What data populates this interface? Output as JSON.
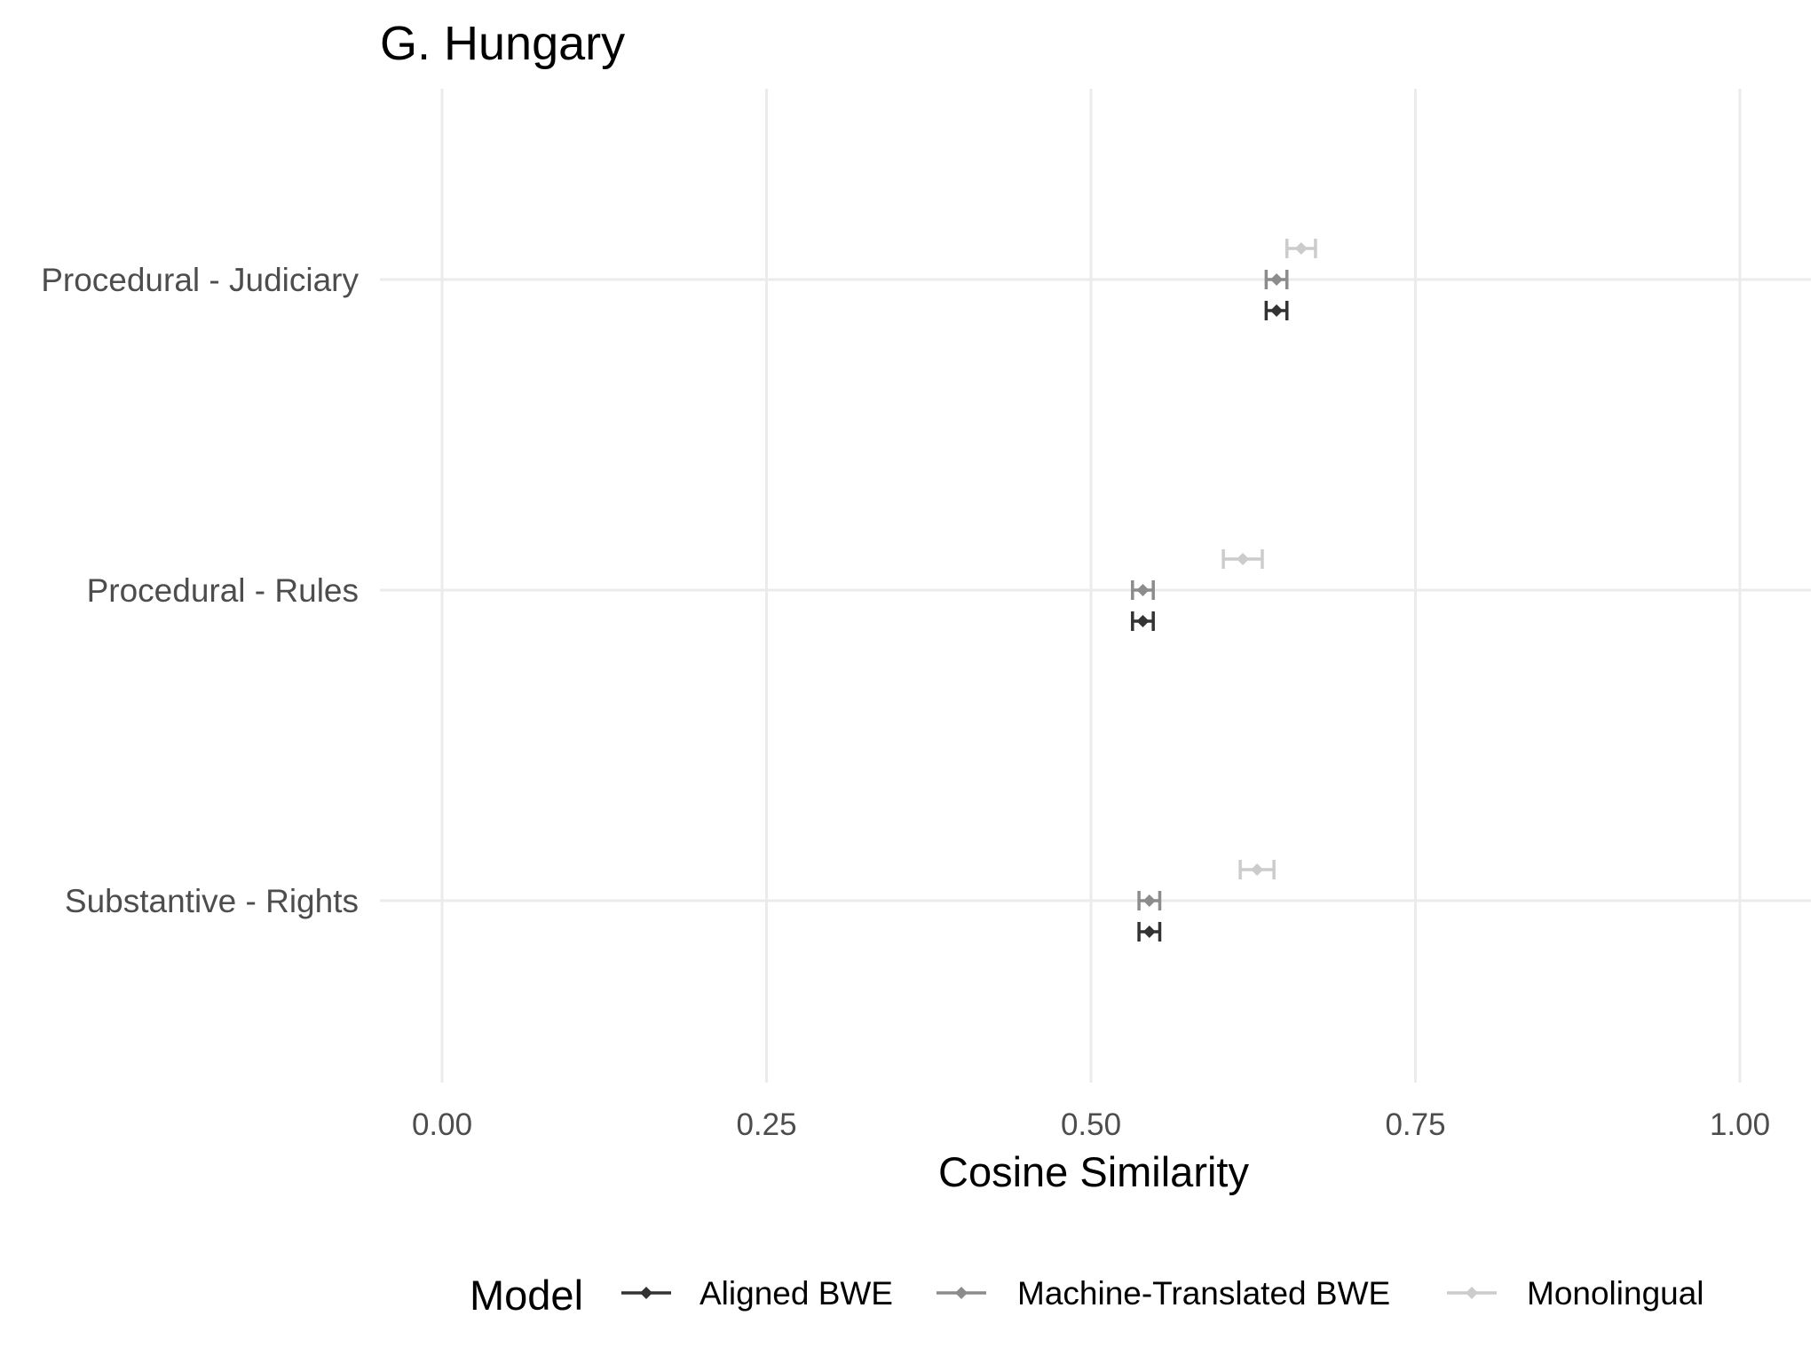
{
  "chart_data": {
    "type": "errorbar",
    "title": "G. Hungary",
    "xlabel": "Cosine Similarity",
    "ylabel": "",
    "xlim": [
      0,
      1
    ],
    "x_ticks": [
      "0.00",
      "0.25",
      "0.50",
      "0.75",
      "1.00"
    ],
    "grid": true,
    "legend": {
      "title": "Model",
      "position": "bottom"
    },
    "categories": [
      "Procedural - Judiciary",
      "Procedural - Rules",
      "Substantive - Rights"
    ],
    "series": [
      {
        "name": "Aligned BWE",
        "color": "#333333",
        "points": [
          {
            "category": "Procedural - Judiciary",
            "value": 0.643,
            "low": 0.635,
            "high": 0.651
          },
          {
            "category": "Procedural - Rules",
            "value": 0.54,
            "low": 0.532,
            "high": 0.548
          },
          {
            "category": "Substantive - Rights",
            "value": 0.545,
            "low": 0.537,
            "high": 0.553
          }
        ]
      },
      {
        "name": "Machine-Translated BWE",
        "color": "#8c8c8c",
        "points": [
          {
            "category": "Procedural - Judiciary",
            "value": 0.643,
            "low": 0.635,
            "high": 0.651
          },
          {
            "category": "Procedural - Rules",
            "value": 0.54,
            "low": 0.532,
            "high": 0.548
          },
          {
            "category": "Substantive - Rights",
            "value": 0.545,
            "low": 0.537,
            "high": 0.553
          }
        ]
      },
      {
        "name": "Monolingual",
        "color": "#cccccc",
        "points": [
          {
            "category": "Procedural - Judiciary",
            "value": 0.662,
            "low": 0.651,
            "high": 0.673
          },
          {
            "category": "Procedural - Rules",
            "value": 0.617,
            "low": 0.602,
            "high": 0.632
          },
          {
            "category": "Substantive - Rights",
            "value": 0.628,
            "low": 0.615,
            "high": 0.641
          }
        ]
      }
    ]
  }
}
